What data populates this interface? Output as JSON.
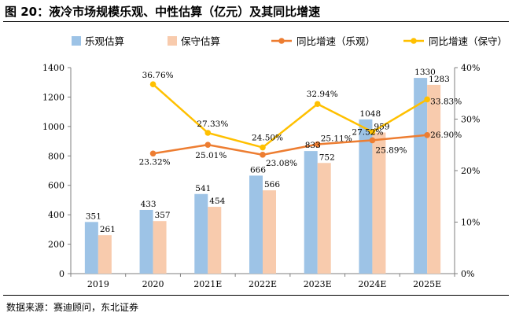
{
  "title": "图 20：液冷市场规模乐观、中性估算（亿元）及其同比增速",
  "source": "数据来源：赛迪顾问，东北证券",
  "chart_data": {
    "type": "bar",
    "categories": [
      "2019",
      "2020",
      "2021E",
      "2022E",
      "2023E",
      "2024E",
      "2025E"
    ],
    "series": [
      {
        "name": "乐观估算",
        "type": "bar",
        "axis": "left",
        "color": "#9dc3e6",
        "values": [
          351,
          433,
          541,
          666,
          833,
          1048,
          1330
        ],
        "labels": [
          "351",
          "433",
          "541",
          "666",
          "833",
          "1048",
          "1330"
        ]
      },
      {
        "name": "保守估算",
        "type": "bar",
        "axis": "left",
        "color": "#f8cbad",
        "values": [
          261,
          357,
          454,
          566,
          752,
          959,
          1283
        ],
        "labels": [
          "261",
          "357",
          "454",
          "566",
          "752",
          "959",
          "1283"
        ]
      },
      {
        "name": "同比增速（乐观）",
        "type": "line",
        "axis": "right",
        "color": "#ed7d31",
        "values": [
          null,
          23.32,
          25.01,
          23.08,
          25.11,
          25.89,
          26.9
        ],
        "labels": [
          "",
          "23.32%",
          "25.01%",
          "23.08%",
          "25.11%",
          "25.89%",
          "26.90%"
        ]
      },
      {
        "name": "同比增速（保守）",
        "type": "line",
        "axis": "right",
        "color": "#ffc000",
        "values": [
          null,
          36.76,
          27.33,
          24.5,
          32.94,
          27.52,
          33.83
        ],
        "labels": [
          "",
          "36.76%",
          "27.33%",
          "24.50%",
          "32.94%",
          "27.52%",
          "33.83%"
        ]
      }
    ],
    "y_left": {
      "min": 0,
      "max": 1400,
      "ticks": [
        "0",
        "200",
        "400",
        "600",
        "800",
        "1000",
        "1200",
        "1400"
      ]
    },
    "y_right": {
      "min": 0,
      "max": 40,
      "ticks": [
        "0%",
        "10%",
        "20%",
        "30%",
        "40%"
      ]
    },
    "legend_position": "top",
    "grid": false
  }
}
